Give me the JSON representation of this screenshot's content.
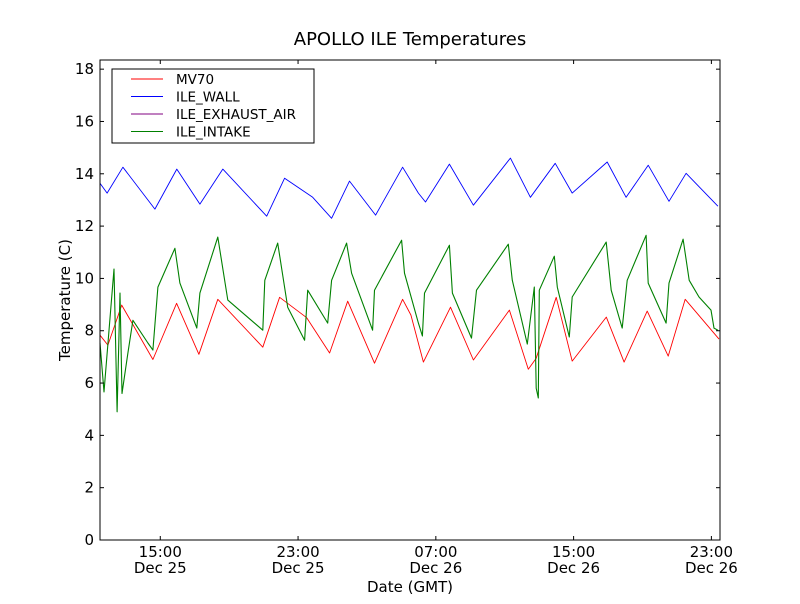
{
  "chart_data": {
    "type": "line",
    "title": "APOLLO ILE Temperatures",
    "xlabel": "Date (GMT)",
    "ylabel": "Temperature (C)",
    "x_unit": "hours from Dec 25 00:00 GMT",
    "xlim": [
      11.5,
      47.5
    ],
    "ylim": [
      0,
      18.35
    ],
    "grid": false,
    "legend_position": "top-left",
    "yticks": [
      0,
      2,
      4,
      6,
      8,
      10,
      12,
      14,
      16,
      18
    ],
    "xticks": [
      {
        "value": 15,
        "time": "15:00",
        "date": "Dec 25"
      },
      {
        "value": 23,
        "time": "23:00",
        "date": "Dec 25"
      },
      {
        "value": 31,
        "time": "07:00",
        "date": "Dec 26"
      },
      {
        "value": 39,
        "time": "15:00",
        "date": "Dec 26"
      },
      {
        "value": 47,
        "time": "23:00",
        "date": "Dec 26"
      }
    ],
    "series": [
      {
        "name": "MV70",
        "color": "#ff0000",
        "points": [
          [
            11.5,
            7.83
          ],
          [
            11.96,
            7.45
          ],
          [
            12.76,
            8.98
          ],
          [
            14.57,
            6.9
          ],
          [
            15.95,
            9.05
          ],
          [
            17.24,
            7.1
          ],
          [
            18.34,
            9.2
          ],
          [
            20.95,
            7.37
          ],
          [
            21.93,
            9.28
          ],
          [
            23.5,
            8.5
          ],
          [
            24.83,
            7.15
          ],
          [
            25.88,
            9.13
          ],
          [
            27.44,
            6.76
          ],
          [
            29.07,
            9.2
          ],
          [
            29.55,
            8.6
          ],
          [
            30.28,
            6.8
          ],
          [
            31.85,
            8.9
          ],
          [
            33.18,
            6.88
          ],
          [
            35.27,
            8.79
          ],
          [
            36.37,
            6.53
          ],
          [
            36.83,
            6.95
          ],
          [
            37.99,
            9.28
          ],
          [
            38.92,
            6.84
          ],
          [
            40.9,
            8.52
          ],
          [
            41.93,
            6.8
          ],
          [
            43.27,
            8.75
          ],
          [
            44.49,
            7.03
          ],
          [
            45.48,
            9.2
          ],
          [
            47.44,
            7.68
          ]
        ]
      },
      {
        "name": "ILE_WALL",
        "color": "#0000ff",
        "points": [
          [
            11.5,
            13.64
          ],
          [
            11.91,
            13.26
          ],
          [
            12.83,
            14.25
          ],
          [
            14.69,
            12.65
          ],
          [
            15.96,
            14.18
          ],
          [
            17.3,
            12.84
          ],
          [
            18.63,
            14.18
          ],
          [
            21.18,
            12.38
          ],
          [
            22.22,
            13.83
          ],
          [
            23.85,
            13.1
          ],
          [
            24.95,
            12.3
          ],
          [
            25.99,
            13.72
          ],
          [
            27.5,
            12.42
          ],
          [
            29.07,
            14.25
          ],
          [
            29.99,
            13.26
          ],
          [
            30.4,
            12.92
          ],
          [
            31.79,
            14.37
          ],
          [
            33.18,
            12.8
          ],
          [
            35.33,
            14.6
          ],
          [
            36.49,
            13.1
          ],
          [
            37.93,
            14.4
          ],
          [
            38.92,
            13.26
          ],
          [
            40.95,
            14.45
          ],
          [
            42.05,
            13.1
          ],
          [
            43.33,
            14.33
          ],
          [
            44.54,
            12.95
          ],
          [
            45.53,
            14.02
          ],
          [
            47.38,
            12.76
          ]
        ]
      },
      {
        "name": "ILE_EXHAUST_AIR",
        "color": "#800080",
        "points": []
      },
      {
        "name": "ILE_INTAKE",
        "color": "#008000",
        "points": [
          [
            11.5,
            7.53
          ],
          [
            11.73,
            5.66
          ],
          [
            12.31,
            10.36
          ],
          [
            12.49,
            4.9
          ],
          [
            12.66,
            9.44
          ],
          [
            12.78,
            5.6
          ],
          [
            13.12,
            7.15
          ],
          [
            13.41,
            8.4
          ],
          [
            14.28,
            7.53
          ],
          [
            14.57,
            7.26
          ],
          [
            14.86,
            9.67
          ],
          [
            15.85,
            11.15
          ],
          [
            16.14,
            9.82
          ],
          [
            17.12,
            8.1
          ],
          [
            17.3,
            9.44
          ],
          [
            18.34,
            11.58
          ],
          [
            18.92,
            9.17
          ],
          [
            20.95,
            8.02
          ],
          [
            21.07,
            9.93
          ],
          [
            21.82,
            11.35
          ],
          [
            22.4,
            8.9
          ],
          [
            23.38,
            7.64
          ],
          [
            23.56,
            9.55
          ],
          [
            24.72,
            8.29
          ],
          [
            24.95,
            9.93
          ],
          [
            25.82,
            11.35
          ],
          [
            26.11,
            10.2
          ],
          [
            27.33,
            8.02
          ],
          [
            27.44,
            9.55
          ],
          [
            29.01,
            11.46
          ],
          [
            29.18,
            10.2
          ],
          [
            29.99,
            8.29
          ],
          [
            30.22,
            7.8
          ],
          [
            30.34,
            9.44
          ],
          [
            31.79,
            11.27
          ],
          [
            31.96,
            9.44
          ],
          [
            33.07,
            7.72
          ],
          [
            33.36,
            9.55
          ],
          [
            35.21,
            11.31
          ],
          [
            35.44,
            9.93
          ],
          [
            36.31,
            7.49
          ],
          [
            36.72,
            9.67
          ],
          [
            36.83,
            5.8
          ],
          [
            36.95,
            5.43
          ],
          [
            37.01,
            9.55
          ],
          [
            37.88,
            10.85
          ],
          [
            38.05,
            9.67
          ],
          [
            38.75,
            7.76
          ],
          [
            38.92,
            9.29
          ],
          [
            40.89,
            11.39
          ],
          [
            41.18,
            9.55
          ],
          [
            41.82,
            8.1
          ],
          [
            42.11,
            9.93
          ],
          [
            43.21,
            11.65
          ],
          [
            43.33,
            9.82
          ],
          [
            44.37,
            8.29
          ],
          [
            44.54,
            9.82
          ],
          [
            45.36,
            11.5
          ],
          [
            45.71,
            9.93
          ],
          [
            46.28,
            9.29
          ],
          [
            46.98,
            8.79
          ],
          [
            47.15,
            8.1
          ],
          [
            47.38,
            8.02
          ]
        ]
      }
    ]
  }
}
